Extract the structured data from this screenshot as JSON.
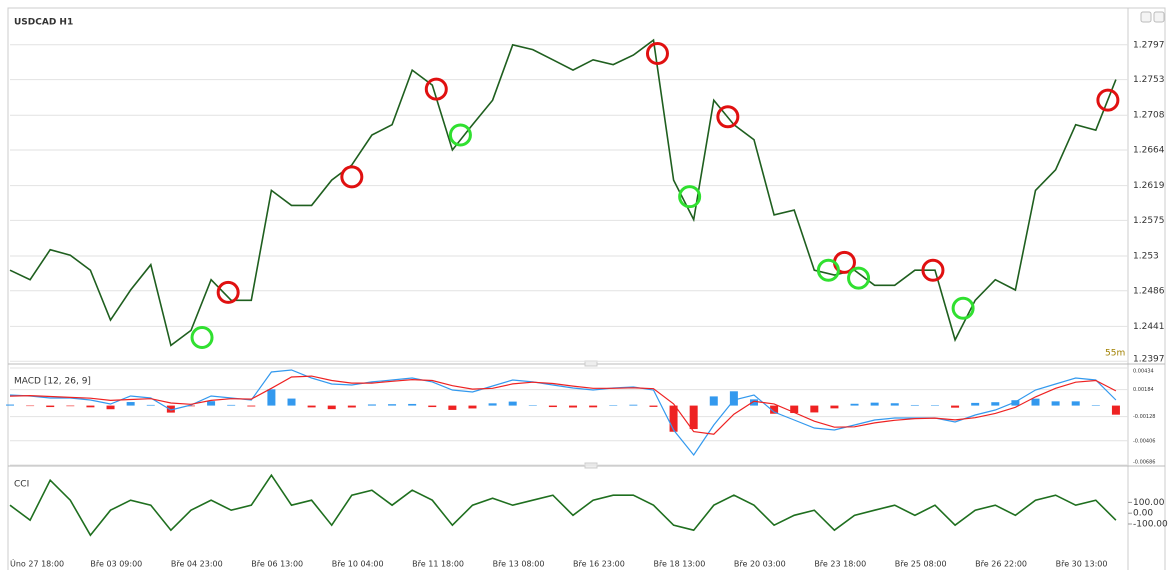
{
  "chart_data": [
    {
      "type": "line",
      "title": "USDCAD H1",
      "annotation": "55m",
      "color": "#1f5f1f",
      "grid": true,
      "x": [
        0,
        1,
        2,
        3,
        4,
        5,
        6,
        7,
        8,
        9,
        10,
        11,
        12,
        13,
        14,
        15,
        16,
        17,
        18,
        19,
        20,
        21,
        22,
        23,
        24,
        25,
        26,
        27,
        28,
        29,
        30,
        31,
        32,
        33,
        34,
        35,
        36,
        37,
        38,
        39,
        40,
        41,
        42,
        43,
        44,
        45,
        46,
        47,
        48,
        49,
        50,
        51,
        52,
        53,
        54,
        55
      ],
      "values": [
        1.2512,
        1.25,
        1.2538,
        1.2531,
        1.2512,
        1.2449,
        1.2487,
        1.2519,
        1.2417,
        1.2436,
        1.25,
        1.2474,
        1.2474,
        1.2613,
        1.2594,
        1.2594,
        1.2626,
        1.2645,
        1.2683,
        1.2696,
        1.2765,
        1.2746,
        1.2664,
        1.2696,
        1.2727,
        1.2797,
        1.2791,
        1.2778,
        1.2765,
        1.2778,
        1.2772,
        1.2784,
        1.2803,
        1.2626,
        1.2576,
        1.2727,
        1.2696,
        1.2677,
        1.2582,
        1.2588,
        1.2512,
        1.2506,
        1.2512,
        1.2493,
        1.2493,
        1.2512,
        1.2512,
        1.2424,
        1.2474,
        1.25,
        1.2487,
        1.2613,
        1.2639,
        1.2696,
        1.2689,
        1.2753
      ],
      "xlim": [
        0,
        55.6
      ],
      "ylim": [
        1.2396,
        1.2841
      ],
      "yticks": [
        1.2397,
        1.2441,
        1.2486,
        1.253,
        1.2575,
        1.2619,
        1.2664,
        1.2708,
        1.2753,
        1.2797
      ],
      "xticks": [
        {
          "value": 0,
          "label": "Úno 27 18:00"
        },
        {
          "value": 4,
          "label": "Bře 03 09:00"
        },
        {
          "value": 8,
          "label": "Bře 04 23:00"
        },
        {
          "value": 12,
          "label": "Bře 06 13:00"
        },
        {
          "value": 16,
          "label": "Bře 10 04:00"
        },
        {
          "value": 20,
          "label": "Bře 11 18:00"
        },
        {
          "value": 24,
          "label": "Bře 13 08:00"
        },
        {
          "value": 28,
          "label": "Bře 16 23:00"
        },
        {
          "value": 32,
          "label": "Bře 18 13:00"
        },
        {
          "value": 36,
          "label": "Bře 20 03:00"
        },
        {
          "value": 40,
          "label": "Bře 23 18:00"
        },
        {
          "value": 44,
          "label": "Bře 25 08:00"
        },
        {
          "value": 48,
          "label": "Bře 26 22:00"
        },
        {
          "value": 52,
          "label": "Bře 30 13:00"
        }
      ],
      "sell_signals": {
        "color": "#e01010",
        "x": [
          10.85,
          17.0,
          21.2,
          32.2,
          35.7,
          41.5,
          45.9,
          54.6
        ],
        "y": [
          1.2484,
          1.263,
          1.2741,
          1.2786,
          1.2706,
          1.2522,
          1.2512,
          1.2727
        ]
      },
      "buy_signals": {
        "color": "#30e030",
        "x": [
          9.55,
          22.4,
          33.8,
          40.7,
          42.2,
          47.4
        ],
        "y": [
          1.2427,
          1.2683,
          1.2605,
          1.2512,
          1.2502,
          1.2464
        ]
      }
    },
    {
      "type": "macd",
      "title": "MACD [12, 26, 9]",
      "grid": true,
      "ylim": [
        -0.00686,
        0.00434
      ],
      "yticks": [
        0.00434,
        0.00184,
        -0.00128,
        -0.00406,
        -0.00686
      ],
      "series": [
        {
          "color": "#3399ee",
          "values": [
            0.00122,
            0.00111,
            0.00088,
            0.00088,
            0.00065,
            0.00018,
            0.00111,
            0.00088,
            -0.00051,
            7e-05,
            0.00111,
            0.00088,
            0.00065,
            0.00388,
            0.00411,
            0.00319,
            0.00249,
            0.00238,
            0.00273,
            0.00296,
            0.00319,
            0.00273,
            0.0018,
            0.00157,
            0.00226,
            0.00296,
            0.00273,
            0.00238,
            0.00203,
            0.0018,
            0.00203,
            0.00215,
            0.0018,
            -0.00282,
            -0.00571,
            -0.00224,
            0.00065,
            0.00122,
            -0.00074,
            -0.00166,
            -0.00259,
            -0.00282,
            -0.00224,
            -0.00166,
            -0.00143,
            -0.00143,
            -0.00143,
            -0.00189,
            -0.00109,
            -0.00051,
            0.00042,
            0.0018,
            0.00249,
            0.00319,
            0.00296,
            0.00065
          ]
        },
        {
          "color": "#ee2222",
          "values": [
            0.0011,
            0.00115,
            0.00105,
            0.00095,
            0.00085,
            0.0006,
            0.0007,
            0.0008,
            0.0003,
            0.00015,
            0.0006,
            0.0008,
            0.00075,
            0.002,
            0.0033,
            0.0034,
            0.0029,
            0.0026,
            0.0026,
            0.0028,
            0.003,
            0.0029,
            0.0023,
            0.0019,
            0.002,
            0.0025,
            0.0027,
            0.00255,
            0.00225,
            0.002,
            0.002,
            0.00205,
            0.00195,
            0.0002,
            -0.003,
            -0.0033,
            -0.001,
            0.0005,
            0.0002,
            -0.0008,
            -0.0018,
            -0.0025,
            -0.00245,
            -0.002,
            -0.0017,
            -0.0015,
            -0.00145,
            -0.00165,
            -0.0014,
            -0.0009,
            -0.0002,
            0.001,
            0.002,
            0.0027,
            0.0029,
            0.0017
          ]
        }
      ],
      "histogram": {
        "pos_color": "#3399ee",
        "neg_color": "#ee2222",
        "values": [
          0.00012,
          -4e-05,
          -0.00017,
          -7e-05,
          -0.0002,
          -0.00042,
          0.00041,
          8e-05,
          -0.00081,
          -8e-05,
          0.00051,
          8e-05,
          -0.0001,
          0.00188,
          0.00081,
          -0.00021,
          -0.00041,
          -0.00022,
          0.00013,
          0.00016,
          0.00019,
          -0.00017,
          -0.0005,
          -0.00033,
          0.00026,
          0.00046,
          3e-05,
          -0.00017,
          -0.00022,
          -0.0002,
          3e-05,
          0.0001,
          -0.00015,
          -0.00302,
          -0.00271,
          0.00106,
          0.00165,
          0.00072,
          -0.00094,
          -0.00086,
          -0.00079,
          -0.00032,
          0.00021,
          0.00034,
          0.00027,
          7e-05,
          2e-05,
          -0.00024,
          0.00031,
          0.00039,
          0.00062,
          0.0008,
          0.00049,
          0.00049,
          6e-05,
          -0.00105
        ]
      }
    },
    {
      "type": "line",
      "title": "CCI",
      "color": "#1f6f1f",
      "grid": false,
      "ylim": [
        -600,
        400
      ],
      "yticks": [
        {
          "value": 100,
          "label": "100.00"
        },
        {
          "value": 0,
          "label": "0.00"
        },
        {
          "value": -100,
          "label": "-100.00"
        }
      ],
      "values": [
        74,
        -65,
        306,
        120,
        -204,
        28,
        120,
        74,
        -157,
        28,
        120,
        28,
        74,
        352,
        74,
        120,
        -111,
        167,
        213,
        74,
        213,
        120,
        -111,
        74,
        139,
        74,
        120,
        167,
        -19,
        120,
        167,
        167,
        74,
        -111,
        -157,
        74,
        167,
        74,
        -111,
        -19,
        28,
        -157,
        -19,
        28,
        74,
        -19,
        74,
        -111,
        28,
        74,
        -19,
        120,
        167,
        74,
        120,
        -65
      ]
    }
  ]
}
